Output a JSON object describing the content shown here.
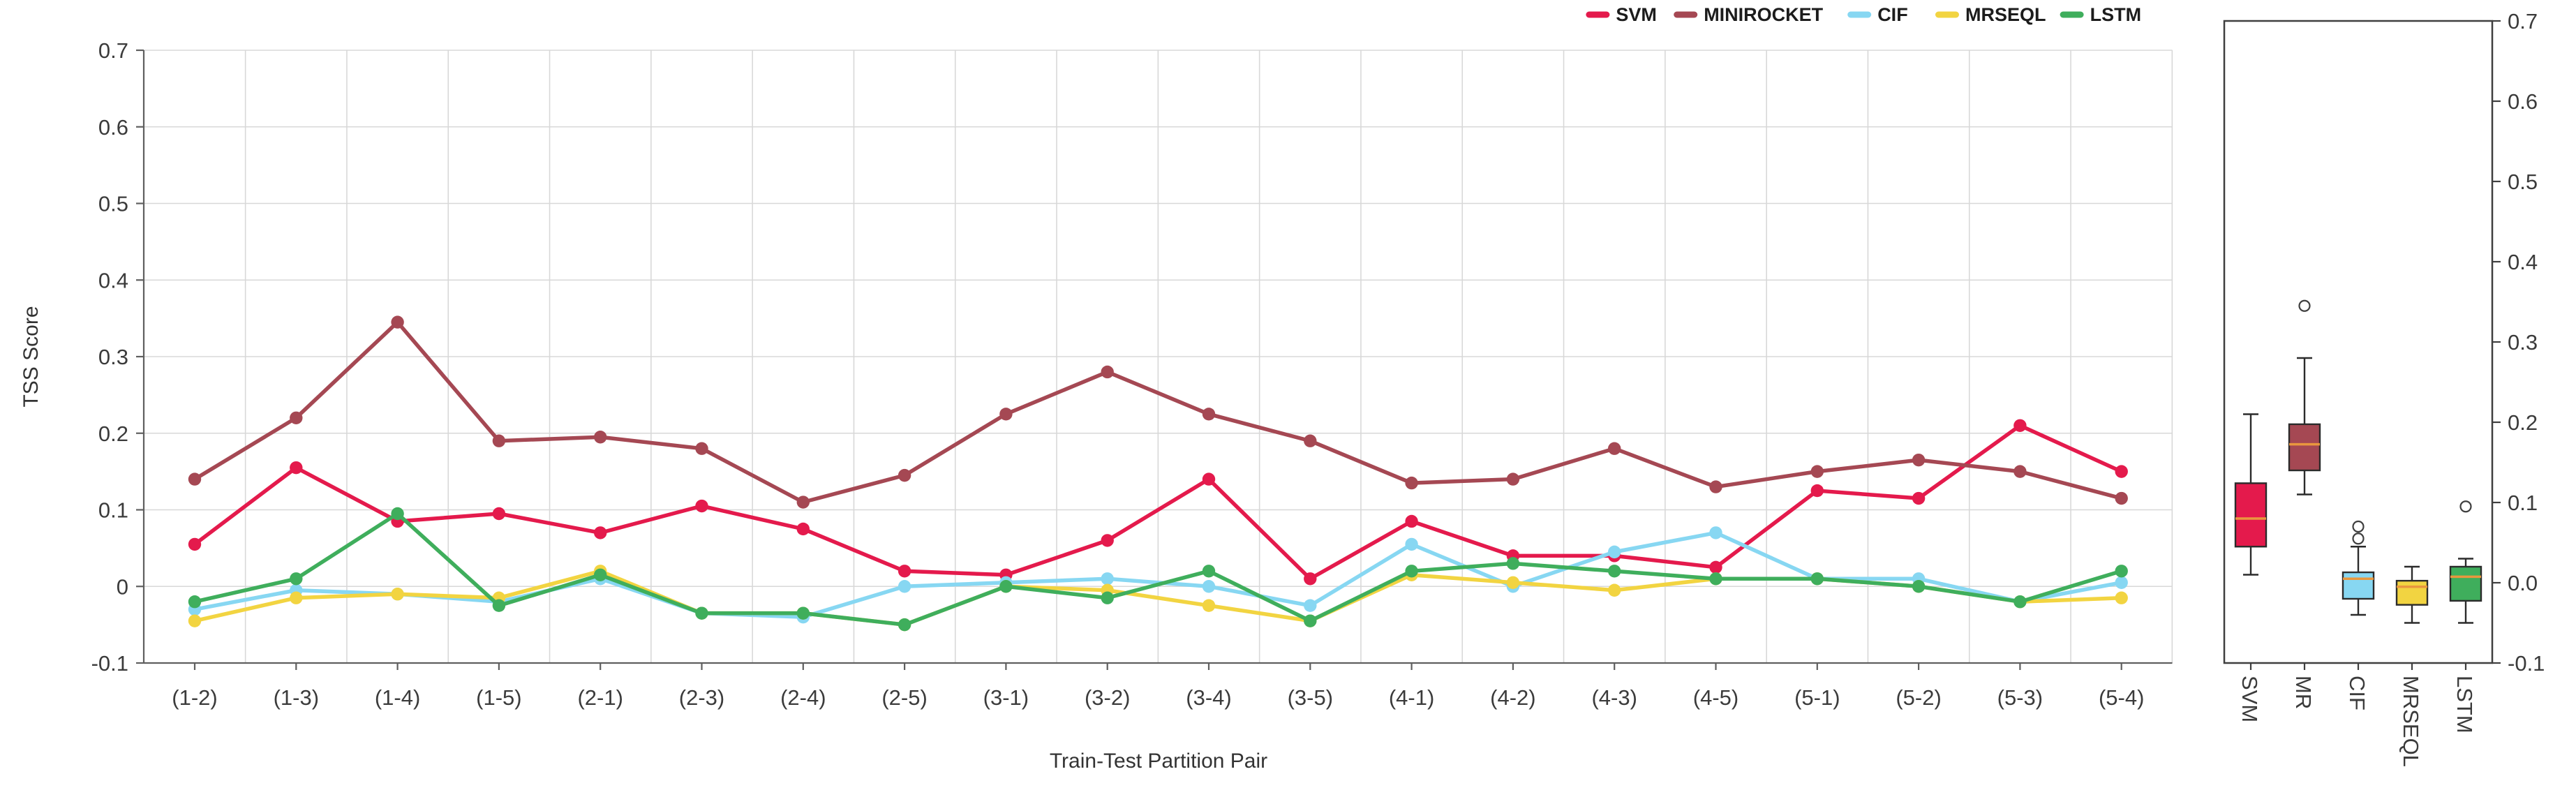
{
  "figure": {
    "xlabel": "Train-Test Partition Pair",
    "ylabel": "TSS Score"
  },
  "colors": {
    "svm": "#e41a4c",
    "minirocket": "#a54853",
    "cif": "#87d7f2",
    "mrseql": "#f2d441",
    "lstm": "#3fae5c",
    "median_line": "#e9973e",
    "grid": "#d8d8d8",
    "axis": "#5f5f5f",
    "tick_text": "#3b3b3b"
  },
  "legend": {
    "position": "top-right",
    "items": [
      {
        "label": "SVM",
        "color": "#e41a4c"
      },
      {
        "label": "MINIROCKET",
        "color": "#a54853"
      },
      {
        "label": "CIF",
        "color": "#87d7f2"
      },
      {
        "label": "MRSEQL",
        "color": "#f2d441"
      },
      {
        "label": "LSTM",
        "color": "#3fae5c"
      }
    ]
  },
  "chart_data": [
    {
      "type": "line",
      "title": "",
      "xlabel": "Train-Test Partition Pair",
      "ylabel": "TSS Score",
      "ylim": [
        -0.1,
        0.7
      ],
      "grid": true,
      "legend_position": "top-right",
      "ytick_labels": [
        "0.7",
        "0.6",
        "0.5",
        "0.4",
        "0.3",
        "0.2",
        "0.1",
        "0",
        "-0.1"
      ],
      "ytick_values": [
        0.7,
        0.6,
        0.5,
        0.4,
        0.3,
        0.2,
        0.1,
        0,
        -0.1
      ],
      "categories": [
        "(1-2)",
        "(1-3)",
        "(1-4)",
        "(1-5)",
        "(2-1)",
        "(2-3)",
        "(2-4)",
        "(2-5)",
        "(3-1)",
        "(3-2)",
        "(3-4)",
        "(3-5)",
        "(4-1)",
        "(4-2)",
        "(4-3)",
        "(4-5)",
        "(5-1)",
        "(5-2)",
        "(5-3)",
        "(5-4)"
      ],
      "series": [
        {
          "name": "SVM",
          "color": "#e41a4c",
          "values": [
            0.055,
            0.155,
            0.085,
            0.095,
            0.07,
            0.105,
            0.075,
            0.02,
            0.015,
            0.06,
            0.14,
            0.01,
            0.085,
            0.04,
            0.04,
            0.025,
            0.125,
            0.115,
            0.21,
            0.15
          ]
        },
        {
          "name": "MINIROCKET",
          "color": "#a54853",
          "values": [
            0.14,
            0.22,
            0.345,
            0.19,
            0.195,
            0.18,
            0.11,
            0.145,
            0.225,
            0.28,
            0.225,
            0.19,
            0.135,
            0.14,
            0.18,
            0.13,
            0.15,
            0.165,
            0.15,
            0.115
          ]
        },
        {
          "name": "CIF",
          "color": "#87d7f2",
          "values": [
            -0.03,
            -0.005,
            -0.01,
            -0.02,
            0.01,
            -0.035,
            -0.04,
            0,
            0.005,
            0.01,
            0,
            -0.025,
            0.055,
            0,
            0.045,
            0.07,
            0.01,
            0.01,
            -0.02,
            0.005
          ]
        },
        {
          "name": "MRSEQL",
          "color": "#f2d441",
          "values": [
            -0.045,
            -0.015,
            -0.01,
            -0.015,
            0.02,
            -0.035,
            -0.035,
            -0.05,
            0,
            -0.005,
            -0.025,
            -0.045,
            0.015,
            0.005,
            -0.005,
            0.01,
            0.01,
            0,
            -0.02,
            -0.015
          ]
        },
        {
          "name": "LSTM",
          "color": "#3fae5c",
          "values": [
            -0.02,
            0.01,
            0.095,
            -0.025,
            0.015,
            -0.035,
            -0.035,
            -0.05,
            0,
            -0.015,
            0.02,
            -0.045,
            0.02,
            0.03,
            0.02,
            0.01,
            0.01,
            0,
            -0.02,
            0.02
          ]
        }
      ]
    },
    {
      "type": "boxplot",
      "ylim": [
        -0.1,
        0.7
      ],
      "axis_side": "right",
      "ytick_labels": [
        "0.7",
        "0.6",
        "0.5",
        "0.4",
        "0.3",
        "0.2",
        "0.1",
        "0.0",
        "-0.1"
      ],
      "ytick_values": [
        0.7,
        0.6,
        0.5,
        0.4,
        0.3,
        0.2,
        0.1,
        0,
        -0.1
      ],
      "categories": [
        "SVM",
        "MR",
        "CIF",
        "MRSEQL",
        "LSTM"
      ],
      "median_color": "#e9973e",
      "boxes": [
        {
          "name": "SVM",
          "color": "#e41a4c",
          "whisker_low": 0.01,
          "q1": 0.045,
          "median": 0.08,
          "q3": 0.124,
          "whisker_high": 0.21,
          "outliers": []
        },
        {
          "name": "MR",
          "color": "#a54853",
          "whisker_low": 0.11,
          "q1": 0.14,
          "median": 0.1725,
          "q3": 0.1975,
          "whisker_high": 0.28,
          "outliers": [
            0.345
          ]
        },
        {
          "name": "CIF",
          "color": "#87d7f2",
          "whisker_low": -0.04,
          "q1": -0.02,
          "median": 0.005,
          "q3": 0.013,
          "whisker_high": 0.045,
          "outliers": [
            0.055,
            0.07
          ]
        },
        {
          "name": "MRSEQL",
          "color": "#f2d441",
          "whisker_low": -0.05,
          "q1": -0.0275,
          "median": -0.005,
          "q3": 0.0025,
          "whisker_high": 0.02,
          "outliers": []
        },
        {
          "name": "LSTM",
          "color": "#3fae5c",
          "whisker_low": -0.05,
          "q1": -0.0225,
          "median": 0.0075,
          "q3": 0.02,
          "whisker_high": 0.03,
          "outliers": [
            0.095
          ]
        }
      ]
    }
  ]
}
